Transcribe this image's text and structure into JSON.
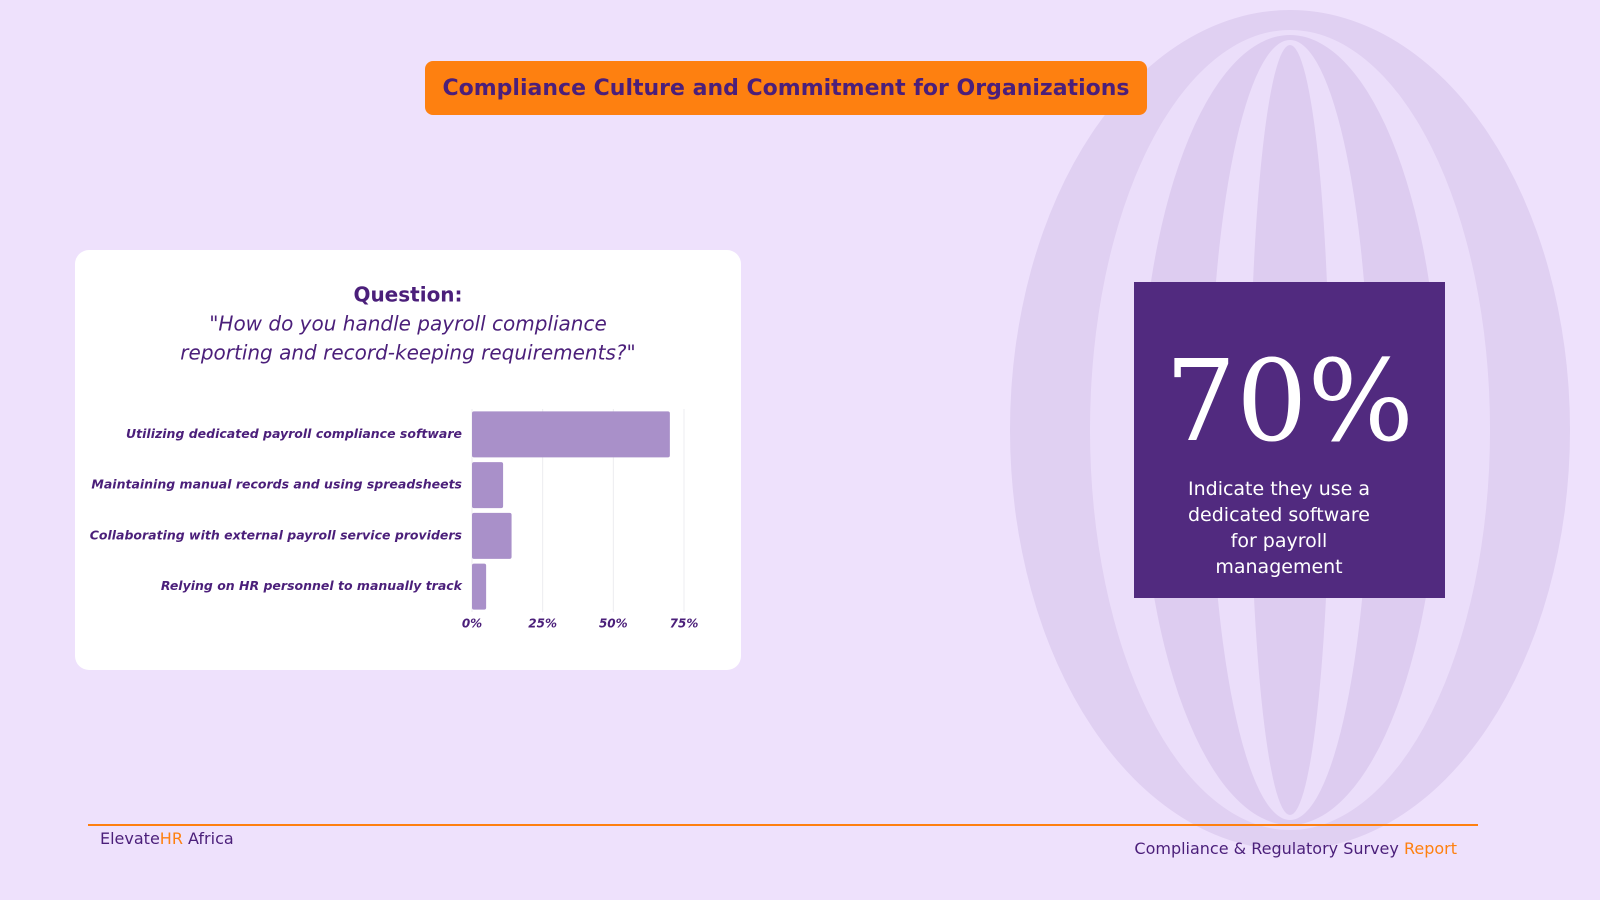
{
  "header": {
    "title": "Compliance Culture and Commitment for Organizations"
  },
  "chart_data": {
    "type": "hbar",
    "title": "Question:",
    "subtitle": [
      "\"How do you handle payroll compliance",
      "reporting and record-keeping requirements?\""
    ],
    "categories": [
      "Utilizing dedicated payroll compliance software",
      "Maintaining manual records and using spreadsheets",
      "Collaborating with external payroll service providers",
      "Relying on HR personnel to manually track"
    ],
    "values": [
      70,
      11,
      14,
      5
    ],
    "color": "#a990c9",
    "xlim": [
      0,
      75
    ],
    "xticks": [
      {
        "value": 0,
        "label": "0%"
      },
      {
        "value": 25,
        "label": "25%"
      },
      {
        "value": 50,
        "label": "50%"
      },
      {
        "value": 75,
        "label": "75%"
      }
    ],
    "grid": true
  },
  "stat": {
    "value": "70%",
    "text": "Indicate they use a dedicated software for payroll management"
  },
  "footer": {
    "brand": [
      "Elevate",
      "HR",
      " Africa"
    ],
    "report": [
      "Compliance & Regulatory Survey ",
      "Report"
    ]
  }
}
